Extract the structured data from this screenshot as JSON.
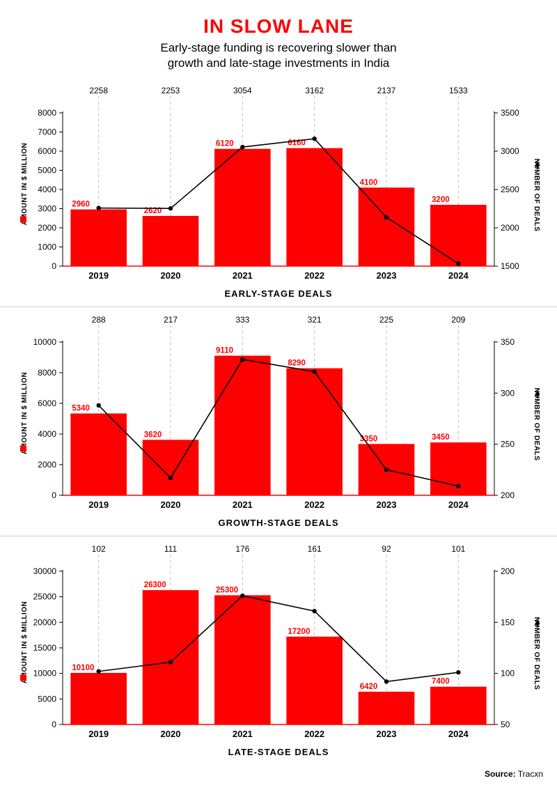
{
  "title": "IN SLOW LANE",
  "subtitle_line1": "Early-stage funding is recovering slower than",
  "subtitle_line2": "growth and late-stage investments in India",
  "source_label": "Source:",
  "source_value": "Tracxn",
  "left_axis_label": "AMOUNT IN $ MILLION",
  "right_axis_label": "NUMBER OF DEALS",
  "colors": {
    "bar": "#ff0000",
    "line": "#000000",
    "marker": "#000000",
    "grid": "#bfbfbf",
    "text": "#000000",
    "background": "#ffffff",
    "baseline": "#ff0000"
  },
  "fonts": {
    "title_size": 28,
    "subtitle_size": 17,
    "axis_tick_size": 12,
    "bar_label_size": 11.5,
    "deal_label_size": 12,
    "chart_title_size": 13
  },
  "charts": [
    {
      "key": "early",
      "title": "EARLY-STAGE DEALS",
      "years": [
        "2019",
        "2020",
        "2021",
        "2022",
        "2023",
        "2024"
      ],
      "amounts": [
        2960,
        2620,
        6120,
        6160,
        4100,
        3200
      ],
      "deals": [
        2258,
        2253,
        3054,
        3162,
        2137,
        1533
      ],
      "left_axis": {
        "min": 0,
        "max": 8000,
        "step": 1000
      },
      "right_axis": {
        "min": 1500,
        "max": 3500,
        "step": 500
      },
      "bar_width": 0.78
    },
    {
      "key": "growth",
      "title": "GROWTH-STAGE DEALS",
      "years": [
        "2019",
        "2020",
        "2021",
        "2022",
        "2023",
        "2024"
      ],
      "amounts": [
        5340,
        3620,
        9110,
        8290,
        3350,
        3450
      ],
      "deals": [
        288,
        217,
        333,
        321,
        225,
        209
      ],
      "left_axis": {
        "min": 0,
        "max": 10000,
        "step": 2000
      },
      "right_axis": {
        "min": 200,
        "max": 350,
        "step": 50
      },
      "bar_width": 0.78
    },
    {
      "key": "late",
      "title": "LATE-STAGE DEALS",
      "years": [
        "2019",
        "2020",
        "2021",
        "2022",
        "2023",
        "2024"
      ],
      "amounts": [
        10100,
        26300,
        25300,
        17200,
        6420,
        7400
      ],
      "deals": [
        102,
        111,
        176,
        161,
        92,
        101
      ],
      "left_axis": {
        "min": 0,
        "max": 30000,
        "step": 5000
      },
      "right_axis": {
        "min": 50,
        "max": 200,
        "step": 50
      },
      "bar_width": 0.78
    }
  ]
}
